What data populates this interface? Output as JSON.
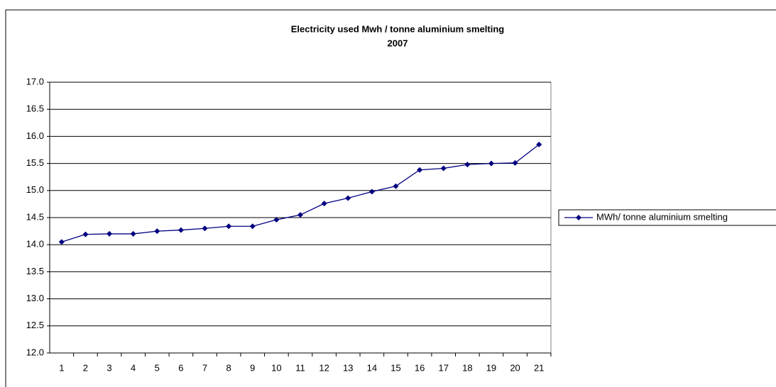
{
  "chart_data": {
    "type": "line",
    "title": "Electricity used Mwh / tonne aluminium smelting",
    "subtitle": "2007",
    "categories": [
      "1",
      "2",
      "3",
      "4",
      "5",
      "6",
      "7",
      "8",
      "9",
      "10",
      "11",
      "12",
      "13",
      "14",
      "15",
      "16",
      "17",
      "18",
      "19",
      "20",
      "21"
    ],
    "series": [
      {
        "name": "MWh/ tonne aluminium smelting",
        "color": "#000080",
        "values": [
          14.05,
          14.19,
          14.2,
          14.2,
          14.25,
          14.27,
          14.3,
          14.34,
          14.34,
          14.46,
          14.55,
          14.76,
          14.86,
          14.98,
          15.08,
          15.38,
          15.41,
          15.48,
          15.5,
          15.51,
          15.85
        ]
      }
    ],
    "ylim": [
      12,
      17
    ],
    "yticks": [
      {
        "value": 12,
        "label": "12.0"
      },
      {
        "value": 12.5,
        "label": "12.5"
      },
      {
        "value": 13,
        "label": "13.0"
      },
      {
        "value": 13.5,
        "label": "13.5"
      },
      {
        "value": 14,
        "label": "14.0"
      },
      {
        "value": 14.5,
        "label": "14.5"
      },
      {
        "value": 15,
        "label": "15.0"
      },
      {
        "value": 15.5,
        "label": "15.5"
      },
      {
        "value": 16,
        "label": "16.0"
      },
      {
        "value": 16.5,
        "label": "16.5"
      },
      {
        "value": 17,
        "label": "17.0"
      }
    ],
    "grid": true,
    "legend": "right"
  }
}
